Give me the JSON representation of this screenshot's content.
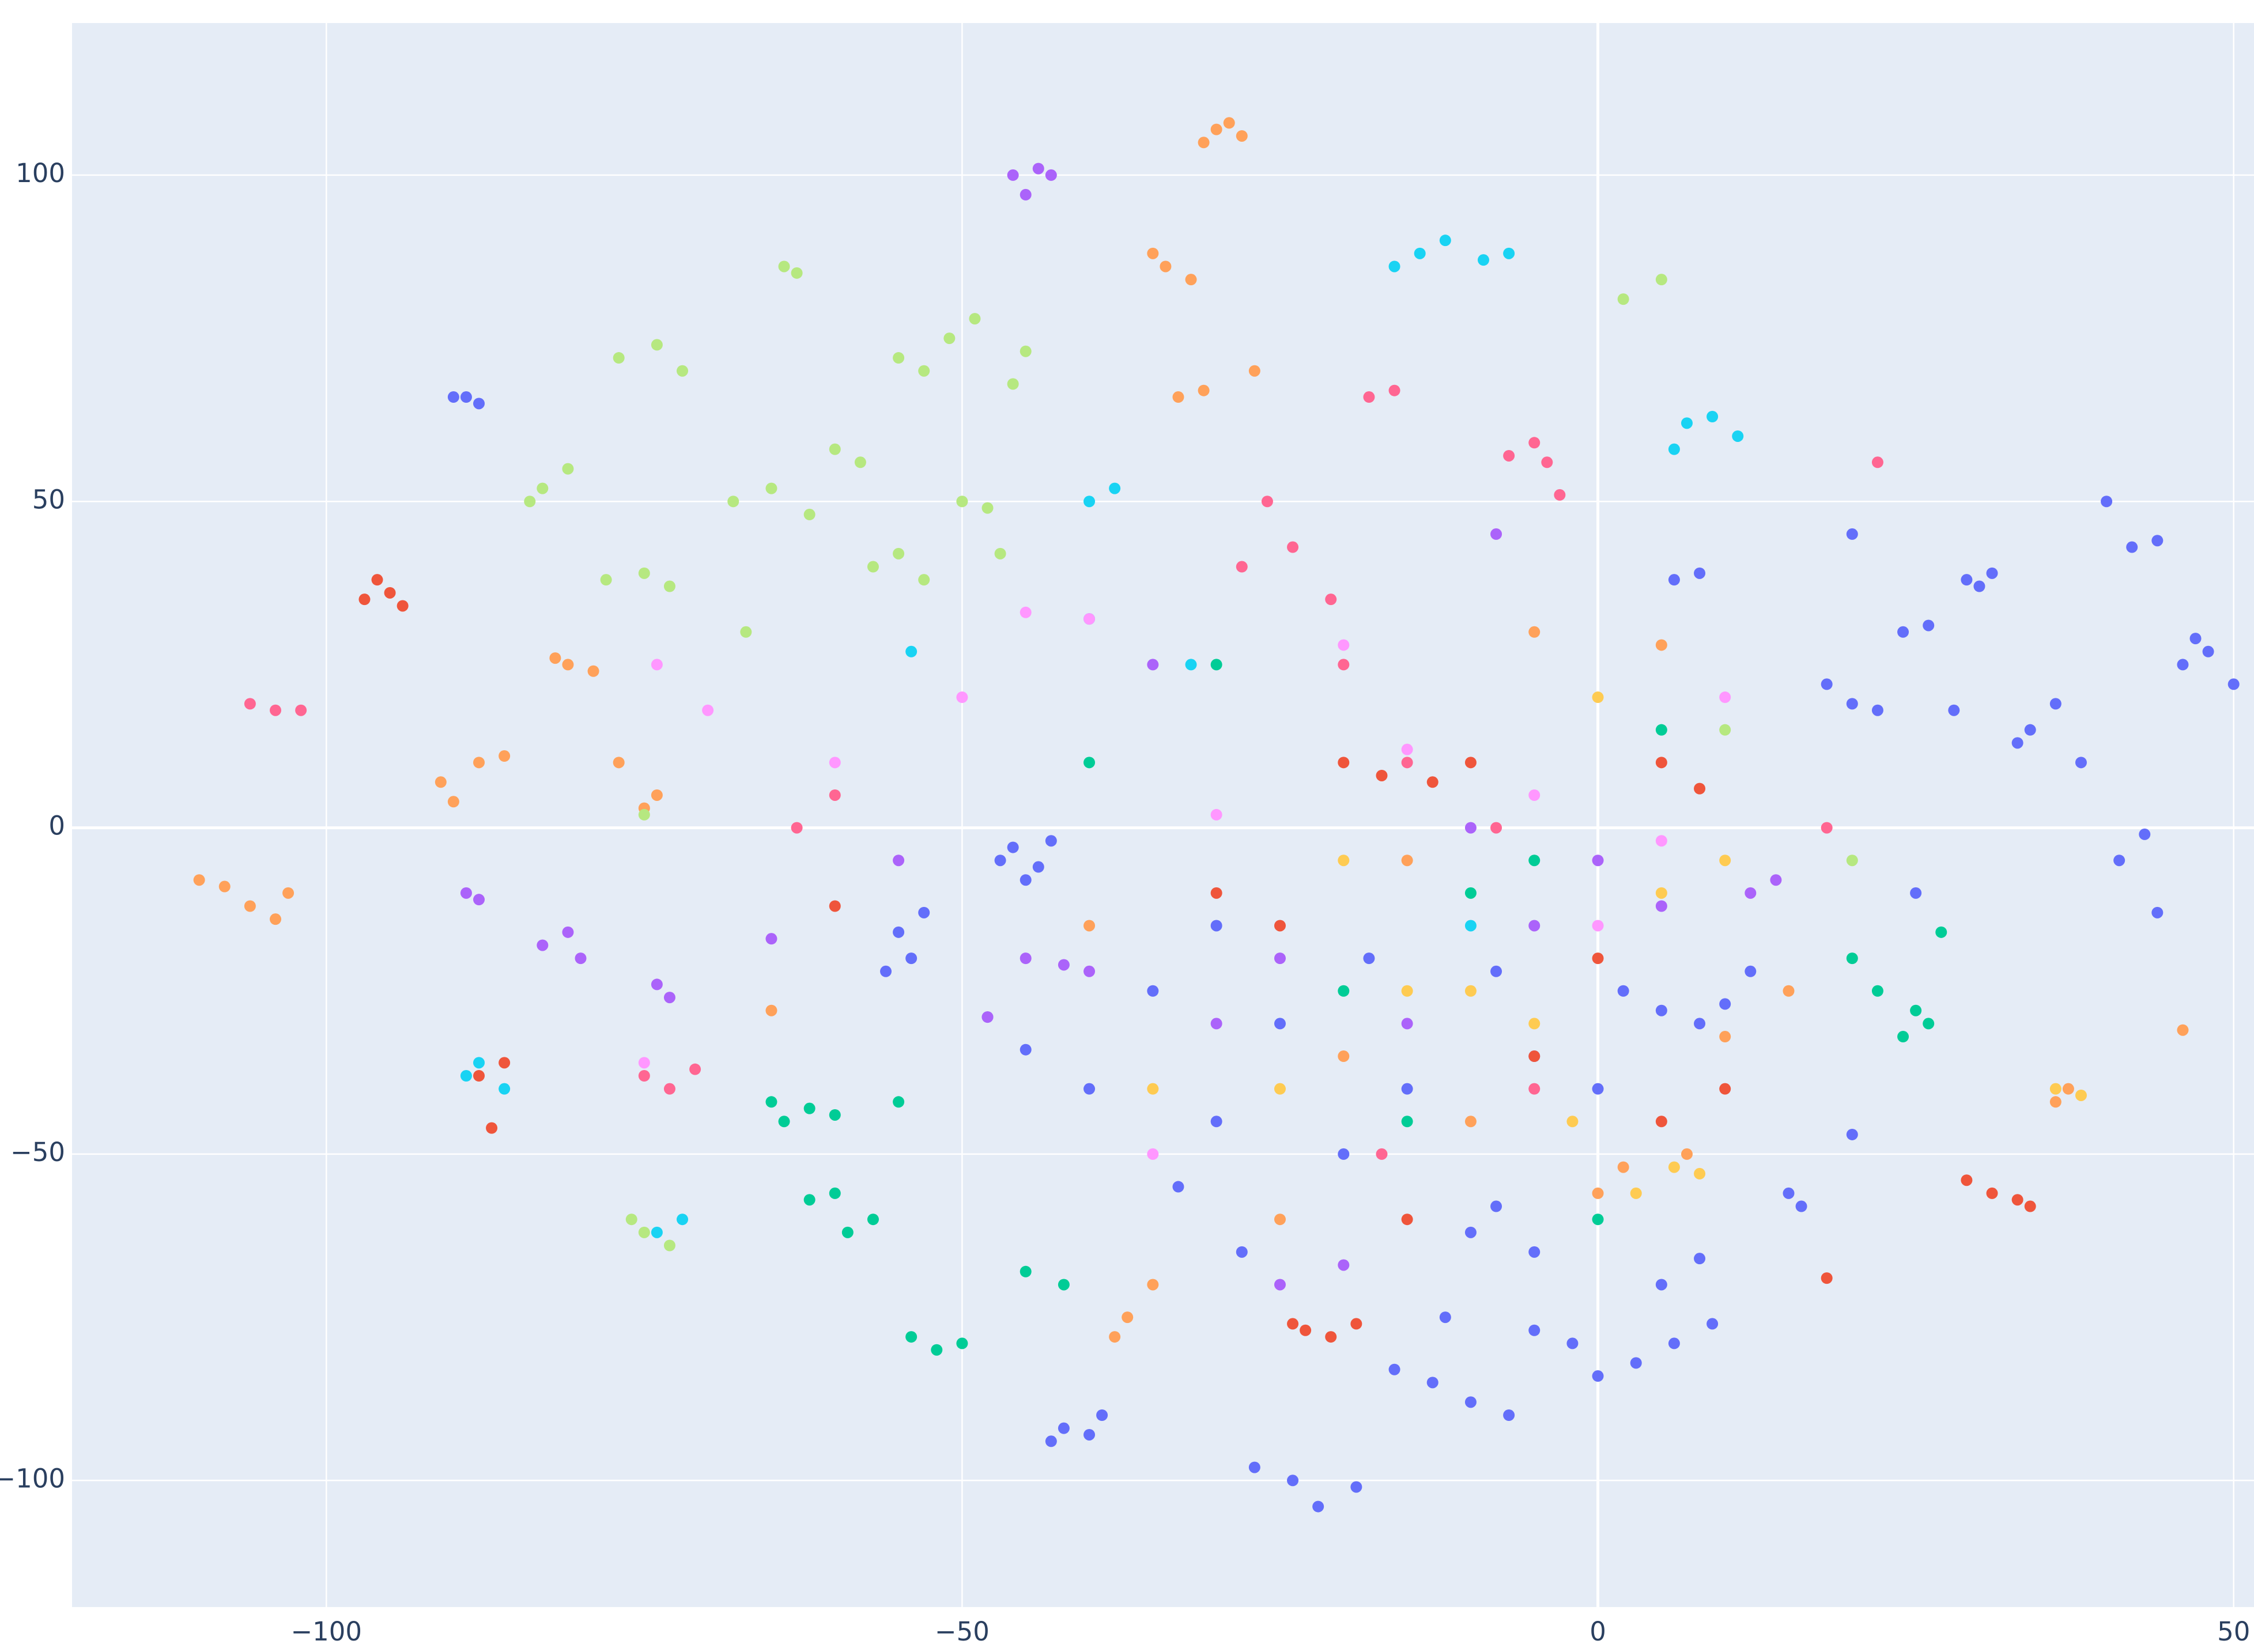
{
  "chart_data": {
    "type": "scatter",
    "xlim": [
      -120,
      51.6
    ],
    "ylim": [
      -119.4,
      123.3
    ],
    "xticks": [
      {
        "value": -100,
        "label": "−100"
      },
      {
        "value": -50,
        "label": "−50"
      },
      0,
      50
    ],
    "yticks": [
      {
        "value": -100,
        "label": "−100"
      },
      {
        "value": -50,
        "label": "−50"
      },
      0,
      50,
      100
    ],
    "grid": true,
    "zeroline": true,
    "series": [
      {
        "color": "#636efa",
        "x": [
          -89,
          -88,
          -90,
          -46,
          -44,
          -45,
          -43,
          -47,
          -55,
          -54,
          -56,
          -53,
          -42,
          -40,
          -43,
          -39,
          -27,
          -24,
          -22,
          -19,
          -16,
          -13,
          -10,
          -7,
          -5,
          -2,
          0,
          3,
          6,
          9,
          5,
          8,
          10,
          12,
          8,
          20,
          22,
          18,
          29,
          31,
          30,
          40,
          42,
          44,
          46,
          48,
          50,
          47,
          20,
          24,
          26,
          34,
          36,
          33,
          -10,
          -8,
          20,
          15,
          16,
          44,
          41,
          43,
          -12,
          -45,
          -48,
          -20,
          -30,
          -25,
          2,
          5,
          6,
          8,
          -35,
          -30,
          -15,
          -5,
          -18,
          -8,
          0,
          -40,
          -33,
          -28,
          -5,
          25,
          28,
          38
        ],
        "y": [
          66,
          65,
          66,
          -3,
          -6,
          -8,
          -2,
          -5,
          -16,
          -20,
          -22,
          -13,
          -92,
          -93,
          -94,
          -90,
          -98,
          -100,
          -104,
          -101,
          -83,
          -85,
          -88,
          -90,
          -77,
          -79,
          -84,
          -82,
          -79,
          -76,
          -70,
          -66,
          -27,
          -22,
          -30,
          19,
          18,
          22,
          38,
          39,
          37,
          50,
          43,
          44,
          25,
          27,
          22,
          29,
          45,
          30,
          31,
          15,
          19,
          13,
          -62,
          -58,
          -47,
          -56,
          -58,
          -13,
          -5,
          -1,
          -75,
          -34,
          -29,
          -50,
          -45,
          -30,
          -25,
          -28,
          38,
          39,
          -25,
          -15,
          -40,
          -35,
          -20,
          -22,
          -40,
          -40,
          -55,
          -65,
          -65,
          -10,
          18,
          10
        ]
      },
      {
        "color": "#EF553B",
        "x": [
          -97,
          -95,
          -96,
          -94,
          -23,
          -21,
          -19,
          -24,
          29,
          31,
          33,
          34,
          -87,
          -88,
          -86,
          -20,
          -17,
          -10,
          -13,
          5,
          8,
          0,
          -30,
          18,
          5,
          -60,
          -25,
          -5,
          10,
          -15
        ],
        "y": [
          35,
          36,
          38,
          34,
          -77,
          -78,
          -76,
          -76,
          -54,
          -56,
          -57,
          -58,
          -46,
          -38,
          -36,
          10,
          8,
          10,
          7,
          10,
          6,
          -20,
          -10,
          -69,
          -45,
          -12,
          -15,
          -35,
          -40,
          -60
        ]
      },
      {
        "color": "#00cc96",
        "x": [
          -64,
          -62,
          -60,
          -65,
          -55,
          -52,
          -54,
          -50,
          -57,
          -59,
          -62,
          -60,
          20,
          22,
          25,
          27,
          26,
          24,
          -45,
          -42,
          -10,
          0,
          -30,
          -40,
          -5,
          -15,
          5,
          -20
        ],
        "y": [
          -45,
          -43,
          -44,
          -42,
          -42,
          -80,
          -78,
          -79,
          -60,
          -62,
          -57,
          -56,
          -20,
          -25,
          -28,
          -16,
          -30,
          -32,
          -68,
          -70,
          -10,
          -60,
          25,
          10,
          -5,
          -45,
          15,
          -25
        ]
      },
      {
        "color": "#ab63fa",
        "x": [
          -46,
          -44,
          -45,
          -43,
          -88,
          -89,
          -83,
          -81,
          -80,
          -74,
          -73,
          -45,
          -42,
          -40,
          -48,
          -25,
          -20,
          12,
          14,
          -15,
          -25,
          -5,
          -65,
          -55,
          -8,
          -35,
          -10,
          -30,
          0,
          5
        ],
        "y": [
          100,
          101,
          97,
          100,
          -11,
          -10,
          -18,
          -16,
          -20,
          -24,
          -26,
          -20,
          -21,
          -22,
          -29,
          -70,
          -67,
          -10,
          -8,
          -30,
          -20,
          -15,
          -17,
          -5,
          45,
          25,
          0,
          -30,
          -5,
          -12
        ]
      },
      {
        "color": "#FFA15A",
        "x": [
          -30,
          -28,
          -29,
          -31,
          -34,
          -32,
          -35,
          -33,
          -31,
          -27,
          -106,
          -104,
          -108,
          -103,
          -110,
          -91,
          -88,
          -90,
          -86,
          -81,
          -79,
          -82,
          -77,
          -75,
          -74,
          -38,
          -37,
          -35,
          0,
          2,
          7,
          37,
          36,
          46,
          -65,
          -10,
          -25,
          -5,
          5,
          -40,
          10,
          15,
          -20,
          -15
        ],
        "y": [
          107,
          106,
          108,
          105,
          86,
          84,
          88,
          66,
          67,
          70,
          -12,
          -14,
          -9,
          -10,
          -8,
          7,
          10,
          4,
          11,
          25,
          24,
          26,
          10,
          3,
          5,
          -78,
          -75,
          -70,
          -56,
          -52,
          -50,
          -40,
          -42,
          -31,
          -28,
          -45,
          -60,
          30,
          28,
          -15,
          -32,
          -25,
          -35,
          -5
        ]
      },
      {
        "color": "#19d3f3",
        "x": [
          -14,
          -12,
          -9,
          -16,
          -7,
          7,
          9,
          11,
          6,
          -89,
          -86,
          -88,
          -74,
          -72,
          -40,
          -38,
          -40,
          -54,
          -32,
          -10
        ],
        "y": [
          88,
          90,
          87,
          86,
          88,
          62,
          63,
          60,
          58,
          -38,
          -40,
          -36,
          -62,
          -60,
          50,
          52,
          32,
          27,
          25,
          -15
        ]
      },
      {
        "color": "#FF6692",
        "x": [
          -106,
          -104,
          -102,
          -75,
          -73,
          -71,
          -18,
          -16,
          -7,
          -4,
          -5,
          -3,
          -28,
          -24,
          -21,
          -26,
          -15,
          -8,
          18,
          22,
          -63,
          -60,
          -17,
          -20,
          -5
        ],
        "y": [
          19,
          18,
          18,
          -38,
          -40,
          -37,
          66,
          67,
          57,
          56,
          59,
          51,
          40,
          43,
          35,
          50,
          10,
          0,
          0,
          56,
          0,
          5,
          -50,
          25,
          -40
        ]
      },
      {
        "color": "#B6E880",
        "x": [
          -64,
          -63,
          -77,
          -74,
          -72,
          -83,
          -81,
          -84,
          -78,
          -75,
          -73,
          -68,
          -65,
          -62,
          -58,
          -55,
          -53,
          -57,
          -50,
          -48,
          -49,
          -51,
          -45,
          -46,
          -53,
          -55,
          -47,
          -75,
          -76,
          -73,
          -67,
          2,
          5,
          -75,
          10,
          20,
          -60
        ],
        "y": [
          86,
          85,
          72,
          74,
          70,
          52,
          55,
          50,
          38,
          39,
          37,
          50,
          52,
          48,
          56,
          42,
          38,
          40,
          50,
          49,
          78,
          75,
          73,
          68,
          70,
          72,
          42,
          -62,
          -60,
          -64,
          30,
          81,
          84,
          2,
          15,
          -5,
          58
        ]
      },
      {
        "color": "#FF97FF",
        "x": [
          -70,
          -74,
          -50,
          -45,
          -20,
          -15,
          -5,
          0,
          5,
          -35,
          -30,
          -75,
          -60,
          -40,
          10
        ],
        "y": [
          18,
          25,
          20,
          33,
          28,
          12,
          5,
          -15,
          -2,
          -50,
          2,
          -36,
          10,
          32,
          20
        ]
      },
      {
        "color": "#FECB52",
        "x": [
          0,
          -15,
          -25,
          3,
          6,
          8,
          36,
          38,
          -35,
          -10,
          5,
          -20,
          -5,
          10,
          -2
        ],
        "y": [
          20,
          -25,
          -40,
          -56,
          -52,
          -53,
          -40,
          -41,
          -40,
          -25,
          -10,
          -5,
          -30,
          -5,
          -45
        ]
      }
    ]
  }
}
